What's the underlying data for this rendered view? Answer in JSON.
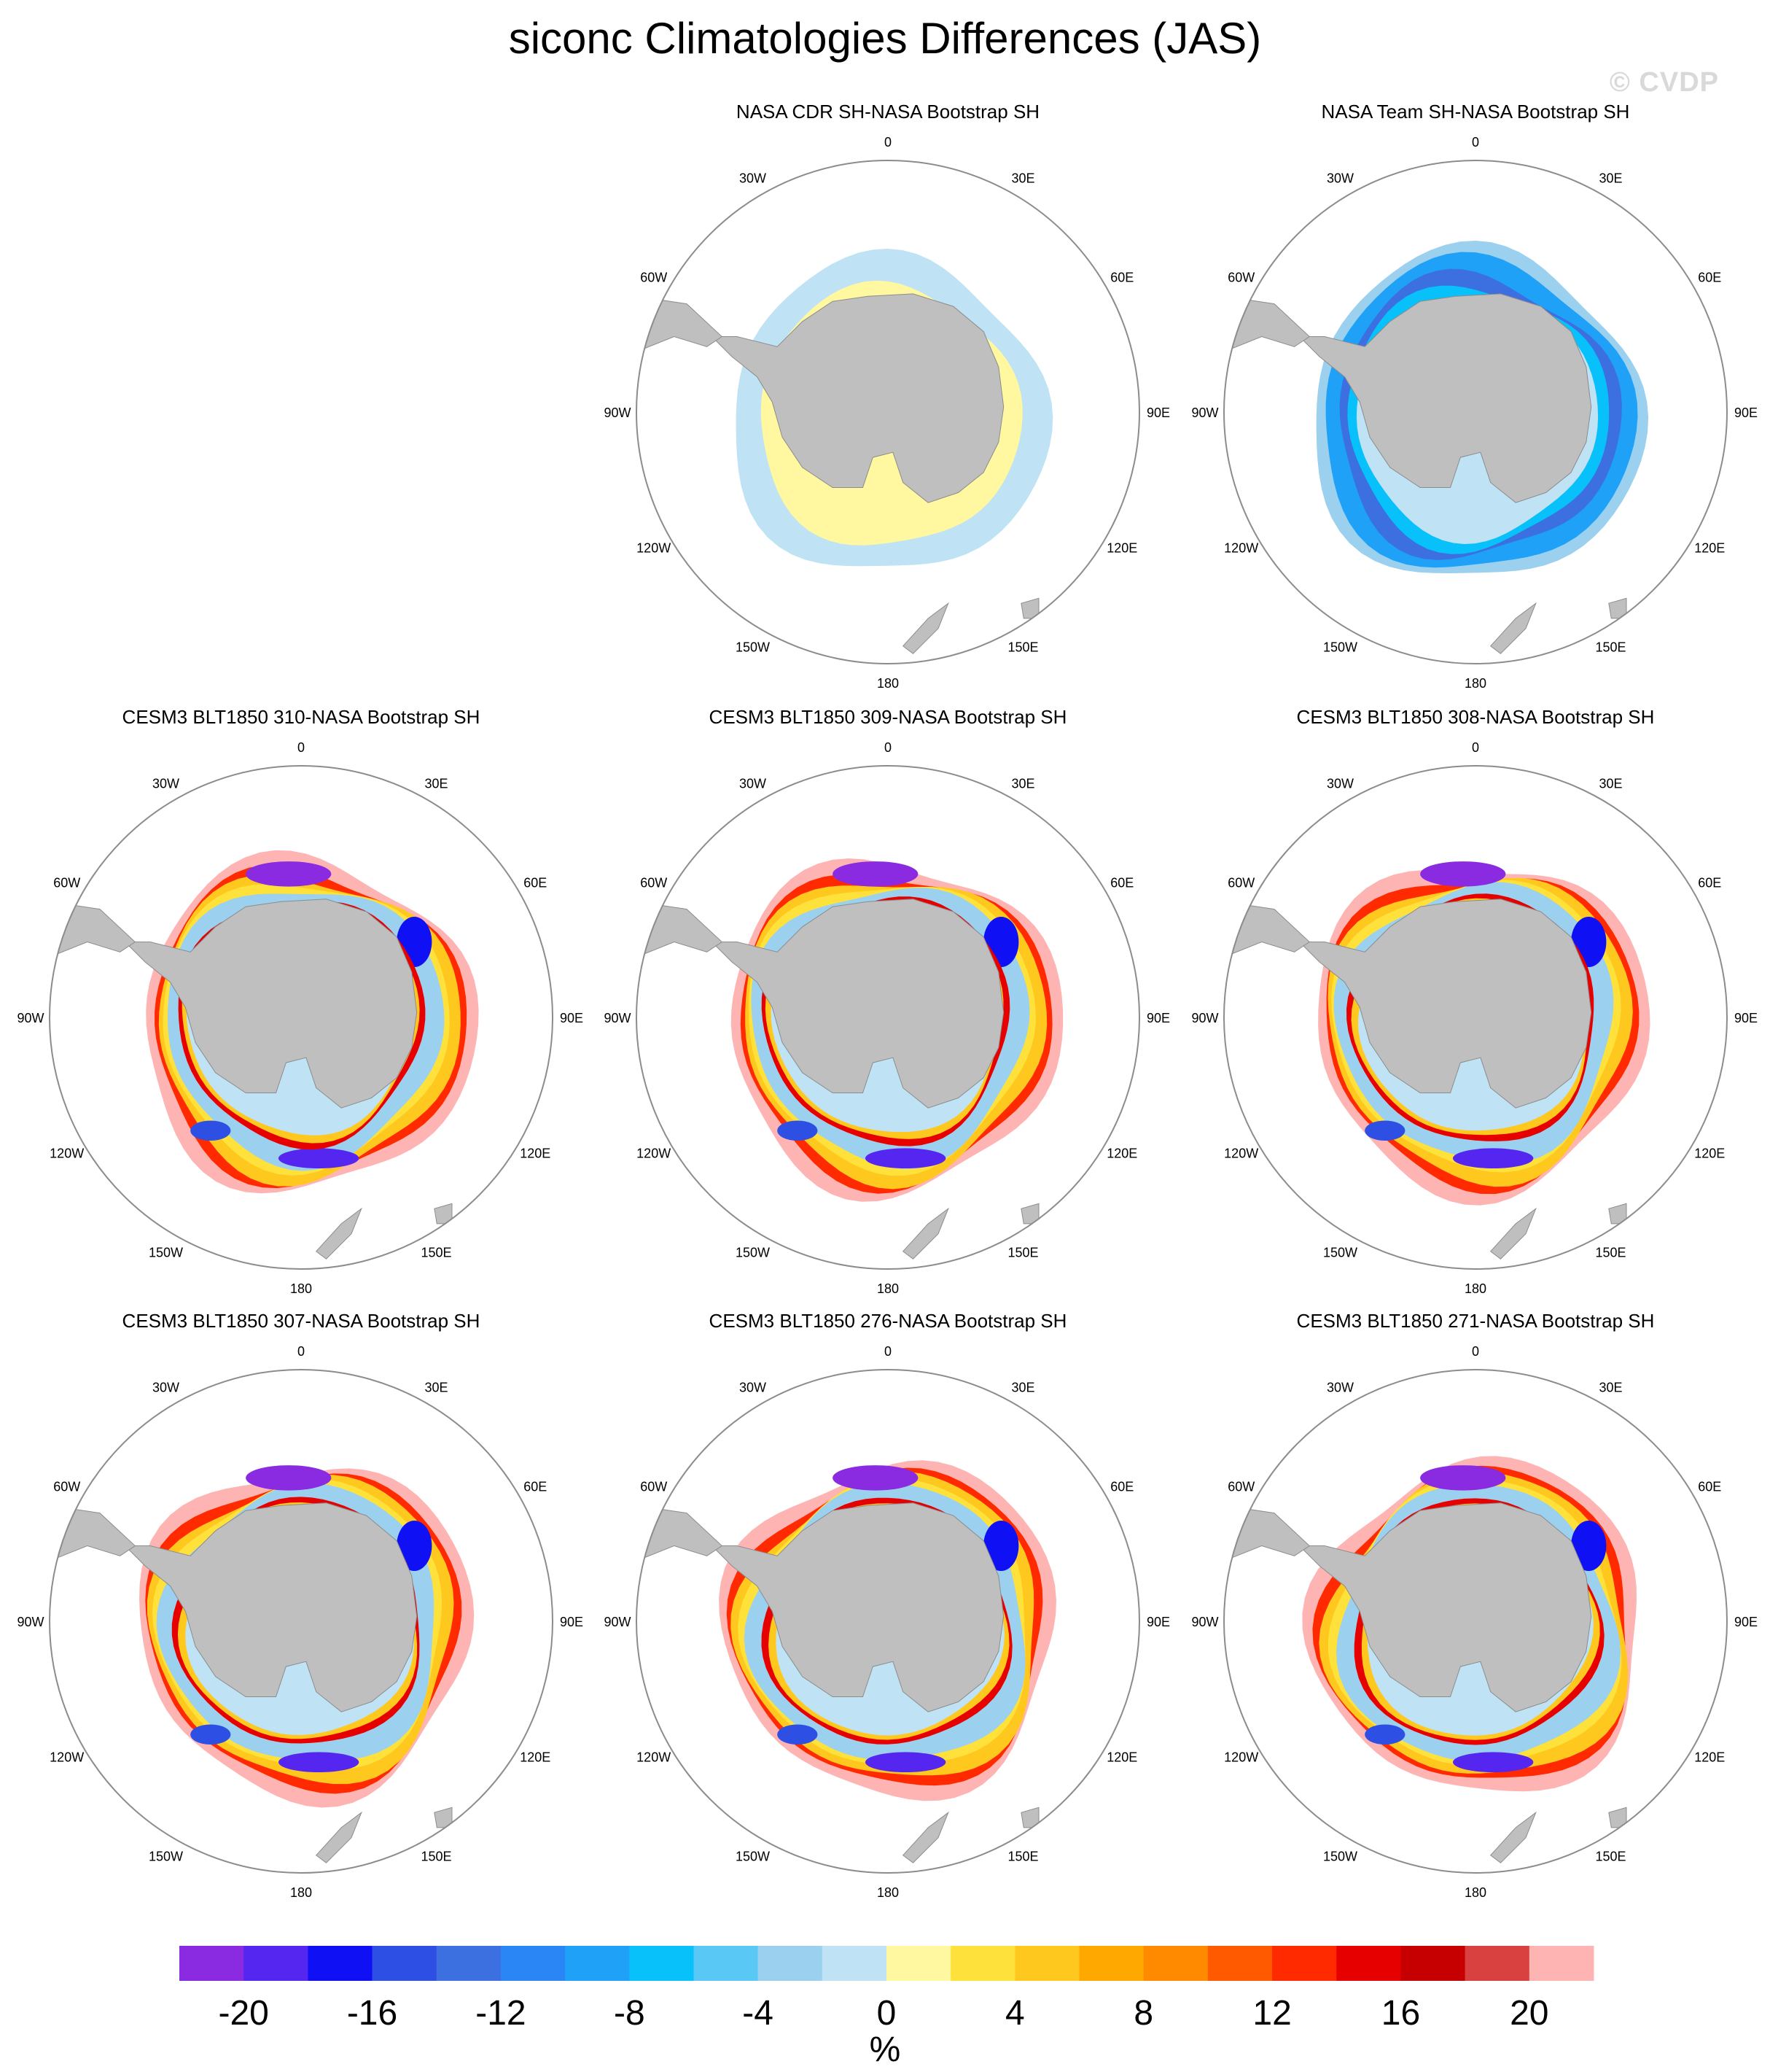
{
  "title": "siconc Climatologies Differences (JAS)",
  "watermark": "© CVDP",
  "colorbar": {
    "colors": [
      "#8a2be2",
      "#5526f0",
      "#1010f5",
      "#2e4fe3",
      "#3c6fe0",
      "#2a85f5",
      "#1ea1f7",
      "#08c0fa",
      "#5ac8f5",
      "#9bd1ee",
      "#bfe3f4",
      "#fff8a0",
      "#ffe13c",
      "#ffc81e",
      "#ffa800",
      "#ff8a00",
      "#ff5a00",
      "#ff2a00",
      "#e60000",
      "#c60000",
      "#d94040",
      "#ffb4b4"
    ],
    "tick_labels": [
      "-20",
      "-16",
      "-12",
      "-8",
      "-4",
      "0",
      "4",
      "8",
      "12",
      "16",
      "20"
    ],
    "unit": "%"
  },
  "lon_labels": {
    "top": "0",
    "tr": "30E",
    "rt": "60E",
    "right": "90E",
    "rb": "120E",
    "br": "150E",
    "bottom": "180",
    "bl": "150W",
    "lb": "120W",
    "left": "90W",
    "lt": "60W",
    "tl": "30W"
  },
  "panels": [
    {
      "name": "NASA CDR SH-NASA Bootstrap SH",
      "style": "cdr"
    },
    {
      "name": "NASA Team SH-NASA Bootstrap SH",
      "style": "team"
    },
    {
      "name": "CESM3 BLT1850 310-NASA Bootstrap SH",
      "style": "model"
    },
    {
      "name": "CESM3 BLT1850 309-NASA Bootstrap SH",
      "style": "model"
    },
    {
      "name": "CESM3 BLT1850 308-NASA Bootstrap SH",
      "style": "model"
    },
    {
      "name": "CESM3 BLT1850 307-NASA Bootstrap SH",
      "style": "model"
    },
    {
      "name": "CESM3 BLT1850 276-NASA Bootstrap SH",
      "style": "model"
    },
    {
      "name": "CESM3 BLT1850 271-NASA Bootstrap SH",
      "style": "model"
    }
  ]
}
